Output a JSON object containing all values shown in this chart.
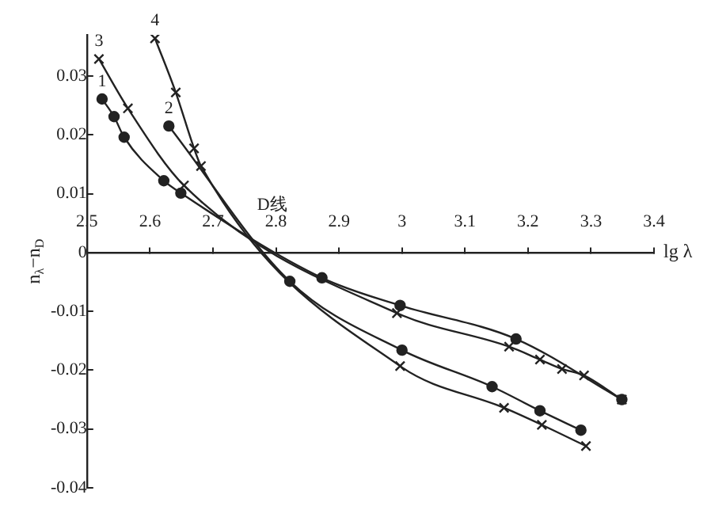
{
  "chart_data": {
    "type": "line",
    "xlabel": "lg λ",
    "ylabel": "n$_{λ}$−n$_{D}$",
    "xlim": [
      2.5,
      3.4
    ],
    "xticks": [
      2.5,
      2.6,
      2.7,
      2.8,
      2.9,
      3.0,
      3.1,
      3.2,
      3.3,
      3.4
    ],
    "ylim": [
      -0.04,
      0.037
    ],
    "yticks": [
      -0.04,
      -0.03,
      -0.02,
      -0.01,
      0,
      0.01,
      0.02,
      0.03
    ],
    "grid": false,
    "legend": false,
    "annotations": [
      {
        "text": "D线",
        "x": 2.76,
        "y": 0
      }
    ],
    "series": [
      {
        "name": "1",
        "color": "#222222",
        "marker": "circle",
        "x": [
          2.524,
          2.543,
          2.559,
          2.622,
          2.649,
          2.873,
          2.997,
          3.181,
          3.349
        ],
        "values": [
          0.0261,
          0.0231,
          0.0196,
          0.0122,
          0.0101,
          -0.0043,
          -0.009,
          -0.0147,
          -0.025
        ]
      },
      {
        "name": "2",
        "color": "#222222",
        "marker": "circle",
        "x": [
          2.63,
          2.822,
          3.0,
          3.143,
          3.219,
          3.284
        ],
        "values": [
          0.0215,
          -0.0049,
          -0.0166,
          -0.0228,
          -0.0269,
          -0.0302
        ]
      },
      {
        "name": "3",
        "color": "#222222",
        "marker": "cross",
        "x": [
          2.519,
          2.565,
          2.654,
          2.992,
          3.17,
          3.219,
          3.254,
          3.289,
          3.349
        ],
        "values": [
          0.0329,
          0.0245,
          0.0114,
          -0.0103,
          -0.016,
          -0.0182,
          -0.0198,
          -0.0209,
          -0.025
        ]
      },
      {
        "name": "4",
        "color": "#222222",
        "marker": "cross",
        "x": [
          2.608,
          2.641,
          2.67,
          2.681,
          2.997,
          3.162,
          3.222,
          3.292
        ],
        "values": [
          0.0364,
          0.0272,
          0.0177,
          0.0147,
          -0.0193,
          -0.0264,
          -0.0293,
          -0.0329
        ]
      }
    ]
  }
}
